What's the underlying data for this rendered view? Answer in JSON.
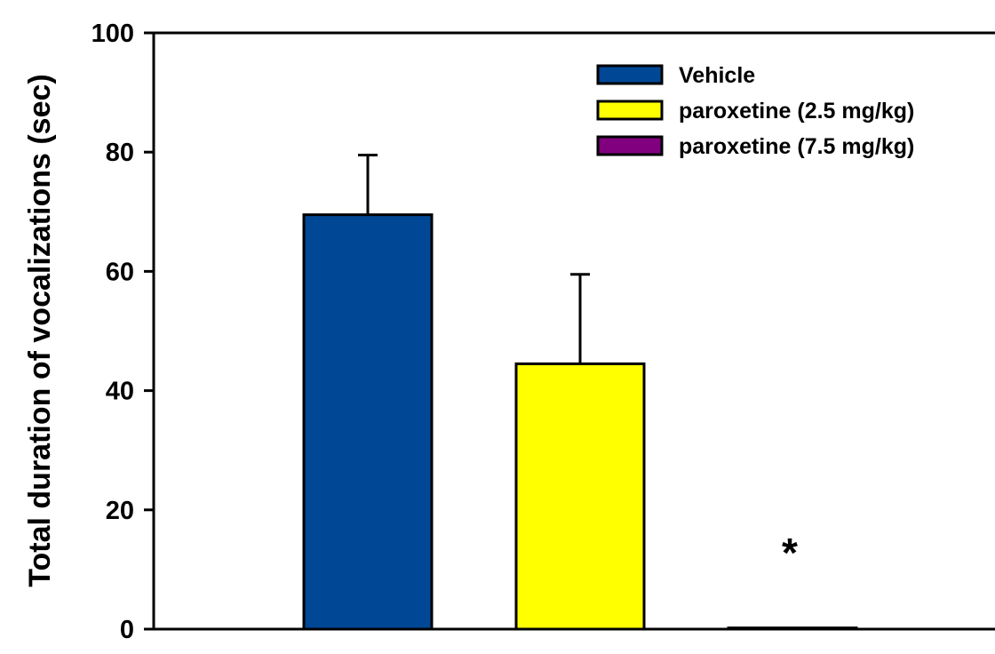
{
  "chart_data": {
    "type": "bar",
    "title": "",
    "xlabel": "",
    "ylabel": "Total duration of vocalizations (sec)",
    "ylim": [
      0,
      100
    ],
    "yticks": [
      "0",
      "20",
      "40",
      "60",
      "80",
      "100"
    ],
    "grid": false,
    "legend_position": "top-right",
    "series": [
      {
        "name": "Vehicle",
        "value": 69.5,
        "error": 10,
        "color": "#004896"
      },
      {
        "name": "paroxetine (2.5 mg/kg)",
        "value": 44.5,
        "error": 15,
        "color": "#ffff00"
      },
      {
        "name": "paroxetine (7.5 mg/kg)",
        "value": 0.2,
        "error": 0,
        "color": "#800080",
        "annotation": "*"
      }
    ]
  }
}
